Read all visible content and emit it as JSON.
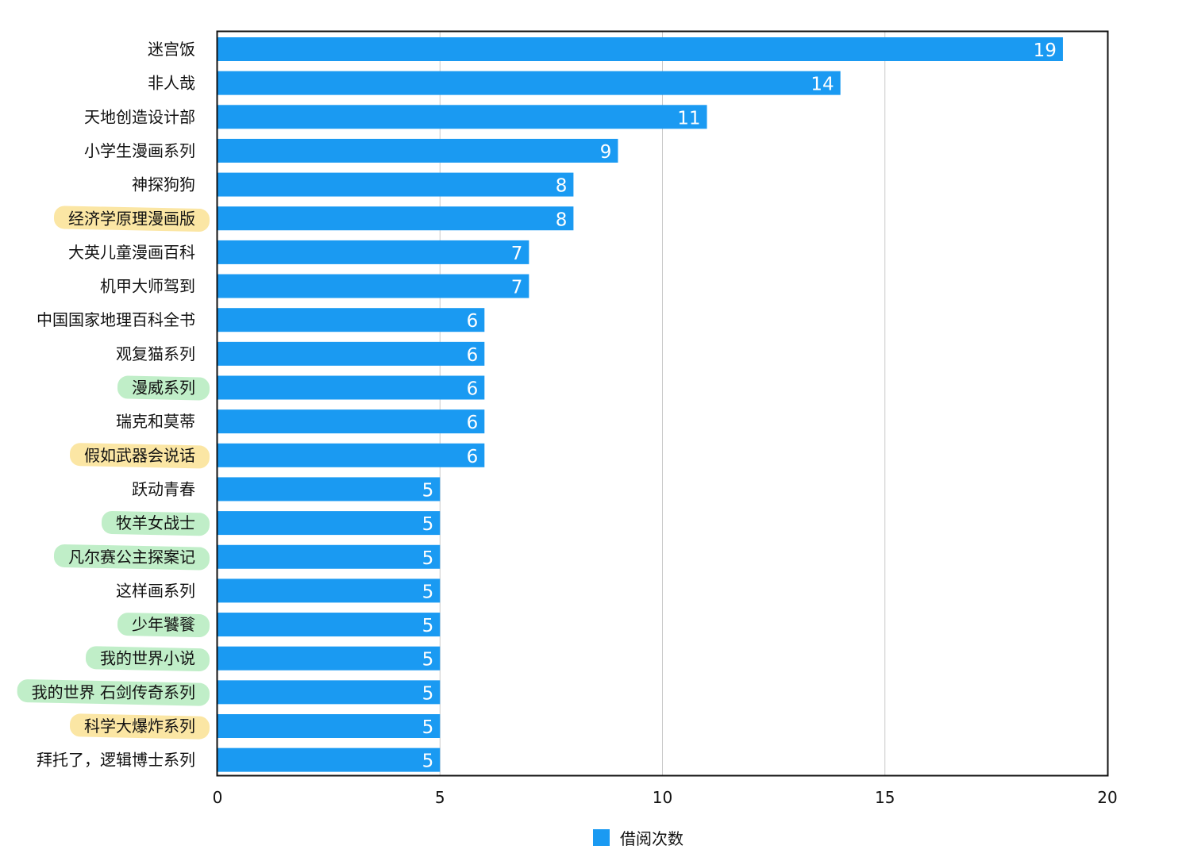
{
  "chart_data": {
    "type": "bar",
    "orientation": "horizontal",
    "categories": [
      "迷宫饭",
      "非人哉",
      "天地创造设计部",
      "小学生漫画系列",
      "神探狗狗",
      "经济学原理漫画版",
      "大英儿童漫画百科",
      "机甲大师驾到",
      "中国国家地理百科全书",
      "观复猫系列",
      "漫威系列",
      "瑞克和莫蒂",
      "假如武器会说话",
      "跃动青春",
      "牧羊女战士",
      "凡尔赛公主探案记",
      "这样画系列",
      "少年饕餮",
      "我的世界小说",
      "我的世界 石剑传奇系列",
      "科学大爆炸系列",
      "拜托了，逻辑博士系列"
    ],
    "series": [
      {
        "name": "借阅次数",
        "values": [
          19,
          14,
          11,
          9,
          8,
          8,
          7,
          7,
          6,
          6,
          6,
          6,
          6,
          5,
          5,
          5,
          5,
          5,
          5,
          5,
          5,
          5
        ],
        "color": "#1a9af2"
      }
    ],
    "highlights": [
      "none",
      "none",
      "none",
      "none",
      "none",
      "yellow",
      "none",
      "none",
      "none",
      "none",
      "green",
      "none",
      "yellow",
      "none",
      "green",
      "green",
      "none",
      "green",
      "green",
      "green",
      "yellow",
      "none"
    ],
    "highlight_colors": {
      "yellow": "#fbe39a",
      "green": "#b9ecc2"
    },
    "xlim": [
      0,
      20
    ],
    "xticks": [
      0,
      5,
      10,
      15,
      20
    ],
    "grid": true,
    "title": "",
    "xlabel": "",
    "ylabel": "",
    "legend_position": "bottom-center"
  }
}
